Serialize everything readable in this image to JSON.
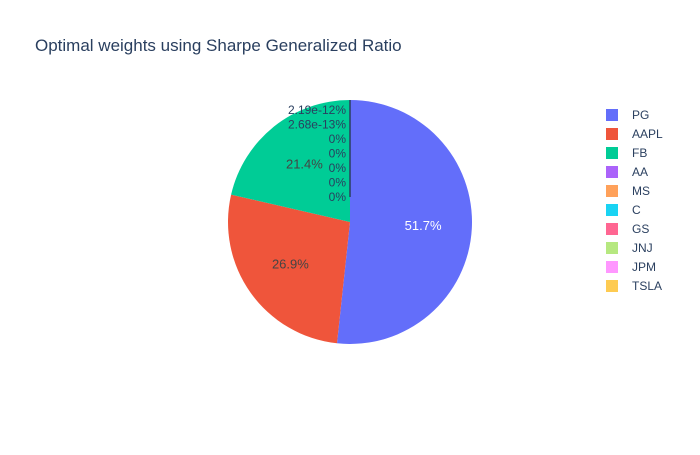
{
  "chart_data": {
    "type": "pie",
    "title": "Optimal weights using Sharpe Generalized Ratio",
    "labels": [
      "PG",
      "AAPL",
      "FB",
      "AA",
      "MS",
      "C",
      "GS",
      "JNJ",
      "JPM",
      "TSLA"
    ],
    "values": [
      51.7,
      26.9,
      21.4,
      2.19e-12,
      2.68e-13,
      0,
      0,
      0,
      0,
      0
    ],
    "text_labels": [
      "51.7%",
      "26.9%",
      "21.4%",
      "2.19e-12%",
      "2.68e-13%",
      "0%",
      "0%",
      "0%",
      "0%",
      "0%"
    ],
    "colors": [
      "#636efa",
      "#EF553B",
      "#00cc96",
      "#ab63fa",
      "#FFA15A",
      "#19d3f3",
      "#FF6692",
      "#B6E880",
      "#FF97FF",
      "#FECB52"
    ],
    "legend_position": "right",
    "direction": "clockwise",
    "start_angle": "top"
  }
}
